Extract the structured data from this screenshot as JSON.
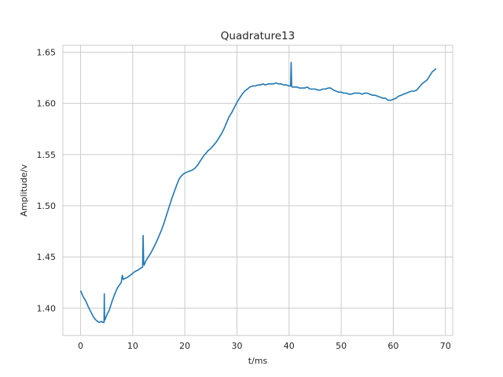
{
  "chart_data": {
    "type": "line",
    "title": "Quadrature13",
    "xlabel": "t/ms",
    "ylabel": "Amplitude/v",
    "xlim": [
      -3.4,
      71.4
    ],
    "ylim": [
      1.3732,
      1.6568
    ],
    "xticks": [
      0,
      10,
      20,
      30,
      40,
      50,
      60,
      70
    ],
    "yticks": [
      1.4,
      1.45,
      1.5,
      1.55,
      1.6,
      1.65
    ],
    "xtick_labels": [
      "0",
      "10",
      "20",
      "30",
      "40",
      "50",
      "60",
      "70"
    ],
    "ytick_labels": [
      "1.40",
      "1.45",
      "1.50",
      "1.55",
      "1.60",
      "1.65"
    ],
    "grid": true,
    "legend": null,
    "colors": {
      "line": "#1f77b4",
      "grid": "#cccccc",
      "text": "#262626"
    },
    "series": [
      {
        "x": [
          0,
          0.5,
          1,
          1.5,
          2,
          2.5,
          3,
          3.5,
          4,
          4.3,
          4.5,
          4.55,
          4.6,
          4.7,
          5,
          5.5,
          6,
          6.5,
          7,
          7.5,
          7.8,
          8,
          8.2,
          8.5,
          9,
          9.5,
          10,
          10.5,
          11,
          11.5,
          11.9,
          12.0,
          12.1,
          12.2,
          12.5,
          13,
          13.5,
          14,
          14.5,
          15,
          15.5,
          16,
          16.5,
          17,
          17.5,
          18,
          18.5,
          19,
          19.5,
          20,
          20.5,
          21,
          21.5,
          22,
          22.5,
          23,
          23.5,
          24,
          24.5,
          25,
          25.5,
          26,
          26.5,
          27,
          27.5,
          28,
          28.5,
          29,
          29.5,
          30,
          30.5,
          31,
          31.5,
          32,
          32.5,
          33,
          33.5,
          34,
          34.5,
          35,
          35.5,
          36,
          36.5,
          37,
          37.5,
          38,
          38.5,
          39,
          39.5,
          40,
          40.3,
          40.4,
          40.5,
          40.6,
          41,
          41.5,
          42,
          42.5,
          43,
          43.5,
          44,
          44.5,
          45,
          45.5,
          46,
          46.5,
          47,
          47.5,
          48,
          48.5,
          49,
          49.5,
          50,
          50.5,
          51,
          51.5,
          52,
          52.5,
          53,
          53.5,
          54,
          54.5,
          55,
          55.5,
          56,
          56.5,
          57,
          57.5,
          58,
          58.5,
          59,
          59.5,
          60,
          60.5,
          61,
          61.5,
          62,
          62.5,
          63,
          63.5,
          64,
          64.5,
          65,
          65.5,
          66,
          66.5,
          67,
          67.5,
          68,
          68.2
        ],
        "values": [
          1.417,
          1.411,
          1.407,
          1.401,
          1.396,
          1.391,
          1.388,
          1.386,
          1.387,
          1.386,
          1.386,
          1.414,
          1.388,
          1.389,
          1.393,
          1.398,
          1.406,
          1.413,
          1.419,
          1.423,
          1.425,
          1.432,
          1.428,
          1.429,
          1.43,
          1.432,
          1.434,
          1.436,
          1.437,
          1.439,
          1.44,
          1.471,
          1.444,
          1.442,
          1.446,
          1.45,
          1.454,
          1.459,
          1.464,
          1.47,
          1.476,
          1.483,
          1.491,
          1.499,
          1.507,
          1.514,
          1.521,
          1.527,
          1.53,
          1.532,
          1.533,
          1.534,
          1.535,
          1.537,
          1.54,
          1.544,
          1.548,
          1.551,
          1.554,
          1.556,
          1.559,
          1.562,
          1.566,
          1.57,
          1.575,
          1.581,
          1.587,
          1.591,
          1.596,
          1.601,
          1.605,
          1.609,
          1.612,
          1.614,
          1.616,
          1.617,
          1.617,
          1.618,
          1.618,
          1.619,
          1.618,
          1.619,
          1.619,
          1.619,
          1.62,
          1.619,
          1.619,
          1.618,
          1.618,
          1.617,
          1.617,
          1.64,
          1.617,
          1.616,
          1.616,
          1.616,
          1.615,
          1.615,
          1.615,
          1.616,
          1.614,
          1.614,
          1.614,
          1.613,
          1.613,
          1.614,
          1.614,
          1.615,
          1.615,
          1.613,
          1.612,
          1.611,
          1.611,
          1.61,
          1.61,
          1.609,
          1.609,
          1.61,
          1.61,
          1.61,
          1.609,
          1.61,
          1.61,
          1.609,
          1.608,
          1.608,
          1.607,
          1.606,
          1.605,
          1.605,
          1.603,
          1.603,
          1.604,
          1.605,
          1.607,
          1.608,
          1.609,
          1.61,
          1.611,
          1.612,
          1.612,
          1.613,
          1.616,
          1.619,
          1.621,
          1.623,
          1.627,
          1.631,
          1.633,
          1.634
        ]
      }
    ]
  }
}
